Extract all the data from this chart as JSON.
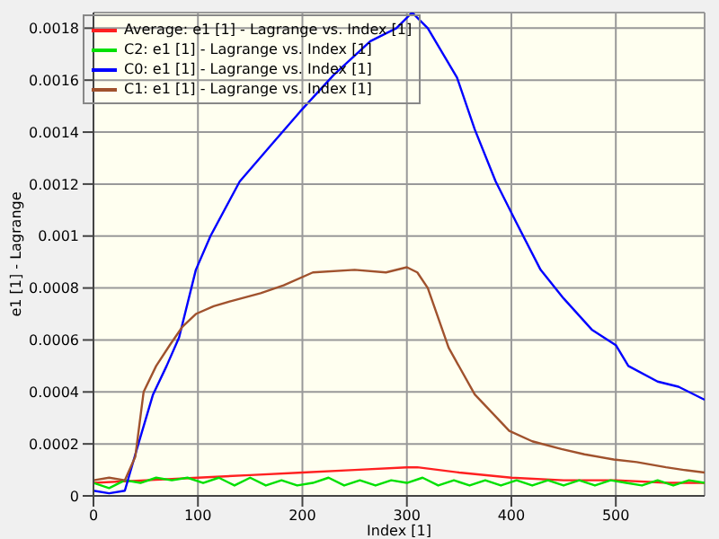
{
  "chart_data": {
    "type": "line",
    "xlabel": "Index [1]",
    "ylabel": "e1 [1] - Lagrange",
    "xlim": [
      0,
      585
    ],
    "xticks": [
      0,
      100,
      200,
      300,
      400,
      500
    ],
    "ylim": [
      0,
      0.00186
    ],
    "yticks": [
      0,
      0.0002,
      0.0004,
      0.0006,
      0.0008,
      0.001,
      0.0012,
      0.0014,
      0.0016,
      0.0018
    ],
    "grid": true,
    "legend": "top left",
    "marker": "none",
    "line_style": "solid",
    "series": [
      {
        "name": "Average: e1 [1] - Lagrange vs. Index [1]",
        "color": "#ff2020",
        "x": [
          0,
          50,
          100,
          150,
          200,
          250,
          300,
          310,
          350,
          400,
          450,
          500,
          550,
          585
        ],
        "values": [
          5e-05,
          6e-05,
          7e-05,
          8e-05,
          9e-05,
          0.0001,
          0.00011,
          0.00011,
          9e-05,
          7e-05,
          6e-05,
          6e-05,
          5e-05,
          5e-05
        ]
      },
      {
        "name": "C2: e1 [1] - Lagrange vs. Index [1]",
        "color": "#00e000",
        "x": [
          0,
          15,
          30,
          45,
          60,
          75,
          90,
          105,
          120,
          135,
          150,
          165,
          180,
          195,
          210,
          225,
          240,
          255,
          270,
          285,
          300,
          315,
          330,
          345,
          360,
          375,
          390,
          405,
          420,
          435,
          450,
          465,
          480,
          495,
          510,
          525,
          540,
          555,
          570,
          585
        ],
        "values": [
          5e-05,
          3e-05,
          6e-05,
          5e-05,
          7e-05,
          6e-05,
          7e-05,
          5e-05,
          7e-05,
          4e-05,
          7e-05,
          4e-05,
          6e-05,
          4e-05,
          5e-05,
          7e-05,
          4e-05,
          6e-05,
          4e-05,
          6e-05,
          5e-05,
          7e-05,
          4e-05,
          6e-05,
          4e-05,
          6e-05,
          4e-05,
          6e-05,
          4e-05,
          6e-05,
          4e-05,
          6e-05,
          4e-05,
          6e-05,
          5e-05,
          4e-05,
          6e-05,
          4e-05,
          6e-05,
          5e-05
        ]
      },
      {
        "name": "C0: e1 [1] - Lagrange vs. Index [1]",
        "color": "#0000ff",
        "x": [
          0,
          15,
          30,
          43,
          57,
          70,
          82,
          98,
          112,
          140,
          170,
          198,
          230,
          265,
          290,
          305,
          320,
          348,
          365,
          385,
          405,
          428,
          450,
          477,
          500,
          512,
          540,
          560,
          585
        ],
        "values": [
          2e-05,
          1e-05,
          2e-05,
          0.0002,
          0.00039,
          0.0005,
          0.00061,
          0.00087,
          0.001,
          0.00121,
          0.00135,
          0.00148,
          0.00162,
          0.00175,
          0.0018,
          0.00186,
          0.0018,
          0.00161,
          0.00141,
          0.00121,
          0.00105,
          0.00087,
          0.00076,
          0.00064,
          0.00058,
          0.0005,
          0.00044,
          0.00042,
          0.00037
        ]
      },
      {
        "name": "C1: e1 [1] - Lagrange vs. Index [1]",
        "color": "#a0522d",
        "x": [
          0,
          15,
          30,
          40,
          48,
          60,
          73,
          85,
          98,
          115,
          132,
          160,
          182,
          210,
          250,
          280,
          300,
          310,
          320,
          340,
          365,
          398,
          420,
          448,
          470,
          498,
          520,
          548,
          565,
          585
        ],
        "values": [
          6e-05,
          7e-05,
          6e-05,
          0.00015,
          0.0004,
          0.0005,
          0.00058,
          0.00065,
          0.0007,
          0.00073,
          0.00075,
          0.00078,
          0.00081,
          0.00086,
          0.00087,
          0.00086,
          0.00088,
          0.00086,
          0.0008,
          0.00057,
          0.00039,
          0.00025,
          0.00021,
          0.00018,
          0.00016,
          0.00014,
          0.00013,
          0.00011,
          0.0001,
          9e-05
        ]
      }
    ]
  }
}
